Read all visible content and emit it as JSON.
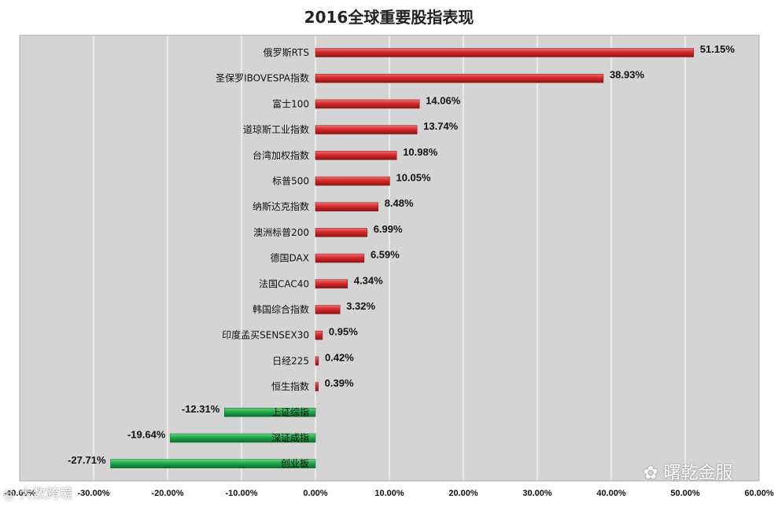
{
  "chart_data": {
    "type": "bar",
    "orientation": "horizontal",
    "title": "2016全球重要股指表现",
    "categories": [
      "俄罗斯RTS",
      "圣保罗IBOVESPA指数",
      "富士100",
      "道琼斯工业指数",
      "台湾加权指数",
      "标普500",
      "纳斯达克指数",
      "澳洲标普200",
      "德国DAX",
      "法国CAC40",
      "韩国综合指数",
      "印度孟买SENSEX30",
      "日经225",
      "恒生指数",
      "上证综指",
      "深证成指",
      "创业板"
    ],
    "values": [
      51.15,
      38.93,
      14.06,
      13.74,
      10.98,
      10.05,
      8.48,
      6.99,
      6.59,
      4.34,
      3.32,
      0.95,
      0.42,
      0.39,
      -12.31,
      -19.64,
      -27.71
    ],
    "value_labels": [
      "51.15%",
      "38.93%",
      "14.06%",
      "13.74%",
      "10.98%",
      "10.05%",
      "8.48%",
      "6.99%",
      "6.59%",
      "4.34%",
      "3.32%",
      "0.95%",
      "0.42%",
      "0.39%",
      "-12.31%",
      "-19.64%",
      "-27.71%"
    ],
    "x_ticks": [
      "-40.00%",
      "-30.00%",
      "-20.00%",
      "-10.00%",
      "0.00%",
      "10.00%",
      "20.00%",
      "30.00%",
      "40.00%",
      "50.00%",
      "60.00%"
    ],
    "xlim": [
      -40,
      60
    ],
    "xlabel": "",
    "ylabel": "",
    "grid": "vertical",
    "colors": {
      "positive": "#d42a2a",
      "negative": "#1fa84a",
      "plot_bg": "#d4d4d4",
      "gridline": "#ffffff"
    }
  },
  "watermarks": {
    "right": "曙乾金服",
    "left": "大数跨境"
  }
}
